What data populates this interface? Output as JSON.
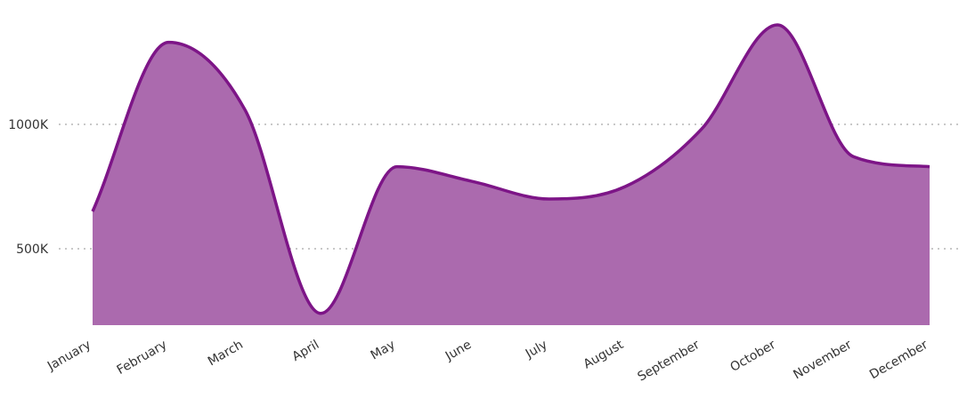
{
  "chart_data": {
    "type": "area",
    "categories": [
      "January",
      "February",
      "March",
      "April",
      "May",
      "June",
      "July",
      "August",
      "September",
      "October",
      "November",
      "December"
    ],
    "series": [
      {
        "values": [
          650,
          1330,
          1060,
          240,
          830,
          770,
          700,
          750,
          980,
          1400,
          870,
          830
        ]
      }
    ],
    "yticks": [
      500,
      1000
    ],
    "ytick_labels": [
      "500K",
      "1000K"
    ],
    "ylim": [
      200,
      1500
    ],
    "grid": "horizontal-dotted",
    "legend": "none",
    "colors": {
      "fill": "#ab6aae",
      "line": "#7d1587",
      "grid": "#b5b5b5"
    }
  }
}
